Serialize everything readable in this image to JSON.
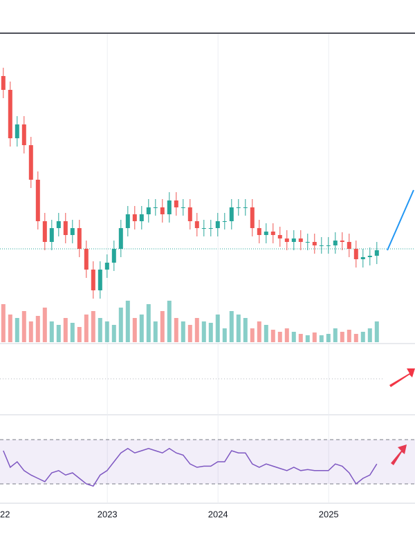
{
  "chart_data": {
    "type": "candlestick",
    "x": [
      2022.06,
      2022.1225,
      2022.185,
      2022.2475,
      2022.31,
      2022.3725,
      2022.435,
      2022.4975,
      2022.56,
      2022.6225,
      2022.685,
      2022.7475,
      2022.81,
      2022.8725,
      2022.935,
      2022.9975,
      2023.06,
      2023.1225,
      2023.185,
      2023.2475,
      2023.31,
      2023.3725,
      2023.435,
      2023.4975,
      2023.56,
      2023.6225,
      2023.685,
      2023.7475,
      2023.81,
      2023.8725,
      2023.935,
      2023.9975,
      2024.06,
      2024.1225,
      2024.185,
      2024.2475,
      2024.31,
      2024.3725,
      2024.435,
      2024.4975,
      2024.56,
      2024.6225,
      2024.685,
      2024.7475,
      2024.81,
      2024.8725,
      2024.935,
      2024.9975,
      2025.06,
      2025.1225,
      2025.185,
      2025.2475,
      2025.31,
      2025.3725,
      2025.435
    ],
    "open": [
      90,
      85,
      67.5,
      72.5,
      65,
      52.5,
      37.5,
      30,
      35,
      37.5,
      32.5,
      35,
      27.5,
      20,
      12.5,
      20,
      22.5,
      27.5,
      35,
      40,
      37.5,
      40,
      42.5,
      42.5,
      40,
      45,
      42.5,
      42.5,
      37.5,
      35,
      35,
      35,
      37.5,
      37.5,
      42.5,
      42.5,
      42.5,
      35,
      32.5,
      33.75,
      32.5,
      31.25,
      30,
      31.25,
      30,
      30,
      28.75,
      28.75,
      28.75,
      30.5,
      30,
      27.5,
      23.75,
      24.5,
      25
    ],
    "high": [
      93,
      88,
      75.5,
      75.5,
      68,
      55.5,
      40.5,
      38,
      40.5,
      40.5,
      38,
      38,
      30.5,
      23,
      23,
      25.5,
      30.5,
      38,
      43,
      43,
      43,
      45.5,
      45.5,
      45.5,
      48,
      48,
      45.5,
      45.5,
      40.5,
      38,
      38,
      40.5,
      40.5,
      45.5,
      45.5,
      45.5,
      45.5,
      38,
      36.75,
      36.75,
      35.5,
      34.25,
      34.25,
      34.25,
      33,
      33,
      31.75,
      31.75,
      33.5,
      33.5,
      33,
      30.5,
      27.5,
      28,
      30
    ],
    "low": [
      82,
      64.5,
      64.5,
      62,
      49.5,
      34.5,
      27,
      27,
      32,
      29.5,
      29.5,
      24.5,
      17,
      9.5,
      9.5,
      17,
      19.5,
      24.5,
      32,
      34.5,
      34.5,
      37,
      39.5,
      37,
      37,
      39.5,
      39.5,
      34.5,
      32,
      32,
      32,
      32,
      34.5,
      34.5,
      39.5,
      39.5,
      32,
      29.5,
      29.5,
      29.5,
      28.25,
      27,
      27,
      27,
      27,
      25.75,
      25.75,
      25.75,
      25.75,
      27,
      24.5,
      20.75,
      20.75,
      21.5,
      22
    ],
    "close": [
      85,
      67.5,
      72.5,
      65,
      52.5,
      37.5,
      30,
      35,
      37.5,
      32.5,
      35,
      27.5,
      20,
      12.5,
      20,
      22.5,
      27.5,
      35,
      40,
      37.5,
      40,
      42.5,
      42.5,
      40,
      45,
      42.5,
      42.5,
      37.5,
      35,
      35,
      35,
      37.5,
      37.5,
      42.5,
      42.5,
      42.5,
      35,
      32.5,
      33.75,
      32.5,
      31.25,
      30,
      31.25,
      30,
      30,
      28.75,
      28.75,
      28.75,
      30.5,
      30,
      27.5,
      23.75,
      24.5,
      25,
      27
    ],
    "up_color": "#26a69a",
    "down_color": "#ef5350",
    "xlim": [
      2022.03,
      2025.78
    ],
    "xticks": [
      {
        "value": 2022,
        "label": "22"
      },
      2023,
      2024,
      2025
    ],
    "ylim": [
      0,
      100
    ],
    "grid": true,
    "volume": {
      "values": [
        55,
        40,
        35,
        45,
        30,
        38,
        50,
        30,
        25,
        35,
        28,
        22,
        40,
        45,
        35,
        30,
        25,
        50,
        60,
        35,
        40,
        55,
        30,
        45,
        60,
        35,
        30,
        25,
        35,
        30,
        28,
        40,
        20,
        45,
        40,
        35,
        20,
        30,
        25,
        18,
        15,
        20,
        15,
        12,
        10,
        14,
        10,
        12,
        20,
        15,
        18,
        12,
        15,
        20,
        30
      ],
      "ylim": [
        0,
        100
      ]
    },
    "rsi": {
      "values": [
        60,
        45,
        50,
        42,
        38,
        35,
        32,
        40,
        42,
        38,
        40,
        35,
        30,
        28,
        38,
        42,
        50,
        58,
        62,
        58,
        60,
        62,
        60,
        58,
        62,
        58,
        56,
        48,
        45,
        46,
        46,
        50,
        50,
        60,
        58,
        58,
        48,
        45,
        48,
        46,
        44,
        42,
        45,
        42,
        43,
        42,
        42,
        42,
        48,
        46,
        40,
        30,
        35,
        38,
        48
      ],
      "color": "#7e57c2",
      "ylim": [
        20,
        80
      ],
      "bands": [
        30,
        70
      ]
    }
  }
}
